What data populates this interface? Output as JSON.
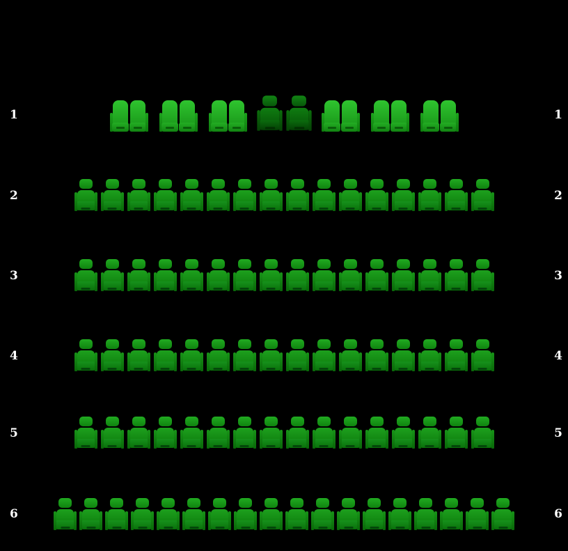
{
  "seat_map": {
    "background_color": "#000000",
    "row_label_color": "#ffffff",
    "rows": [
      {
        "number": "1",
        "left_label": "1",
        "right_label": "1",
        "total_seats": 14,
        "groups": [
          {
            "kind": "sofa-pair",
            "color_variant": "bright-green",
            "seat_count": 2
          },
          {
            "kind": "sofa-pair",
            "color_variant": "bright-green",
            "seat_count": 2
          },
          {
            "kind": "sofa-pair",
            "color_variant": "bright-green",
            "seat_count": 2
          },
          {
            "kind": "chair-pair",
            "color_variant": "dark-green",
            "seat_count": 2
          },
          {
            "kind": "sofa-pair",
            "color_variant": "bright-green",
            "seat_count": 2
          },
          {
            "kind": "sofa-pair",
            "color_variant": "bright-green",
            "seat_count": 2
          },
          {
            "kind": "sofa-pair",
            "color_variant": "bright-green",
            "seat_count": 2
          }
        ]
      },
      {
        "number": "2",
        "left_label": "2",
        "right_label": "2",
        "total_seats": 16,
        "groups": [
          {
            "kind": "chairs",
            "color_variant": "green",
            "seat_count": 16
          }
        ]
      },
      {
        "number": "3",
        "left_label": "3",
        "right_label": "3",
        "total_seats": 16,
        "groups": [
          {
            "kind": "chairs",
            "color_variant": "green",
            "seat_count": 16
          }
        ]
      },
      {
        "number": "4",
        "left_label": "4",
        "right_label": "4",
        "total_seats": 16,
        "groups": [
          {
            "kind": "chairs",
            "color_variant": "green",
            "seat_count": 16
          }
        ]
      },
      {
        "number": "5",
        "left_label": "5",
        "right_label": "5",
        "total_seats": 16,
        "groups": [
          {
            "kind": "chairs",
            "color_variant": "green",
            "seat_count": 16
          }
        ]
      },
      {
        "number": "6",
        "left_label": "6",
        "right_label": "6",
        "total_seats": 18,
        "groups": [
          {
            "kind": "chairs",
            "color_variant": "green",
            "seat_count": 18
          }
        ]
      }
    ],
    "colors": {
      "sofa_bright_top": "#2fc42f",
      "sofa_bright_bottom": "#169016",
      "chair_green_top": "#1da01d",
      "chair_green_bottom": "#0b760b",
      "chair_dark_top": "#0f7c11",
      "chair_dark_bottom": "#064f06"
    }
  }
}
